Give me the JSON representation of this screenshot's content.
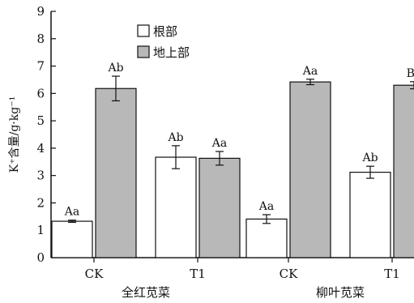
{
  "chart_data": {
    "type": "bar",
    "ylabel": "K⁺含量/g·kg⁻¹",
    "ylim": [
      0,
      9
    ],
    "yticks": [
      "0",
      "1",
      "2",
      "3",
      "4",
      "5",
      "6",
      "7",
      "8",
      "9"
    ],
    "groups": [
      {
        "name": "全红苋菜",
        "categories": [
          "CK",
          "T1"
        ]
      },
      {
        "name": "柳叶苋菜",
        "categories": [
          "CK",
          "T1"
        ]
      }
    ],
    "categories": [
      "CK",
      "T1",
      "CK",
      "T1"
    ],
    "series": [
      {
        "name": "根部",
        "color": "#ffffff",
        "values": [
          1.33,
          3.67,
          1.41,
          3.12
        ],
        "errors": [
          0.04,
          0.42,
          0.16,
          0.22
        ],
        "labels": [
          "Aa",
          "Ab",
          "Aa",
          "Ab"
        ]
      },
      {
        "name": "地上部",
        "color": "#b8b8b8",
        "values": [
          6.18,
          3.63,
          6.42,
          6.3
        ],
        "errors": [
          0.45,
          0.25,
          0.1,
          0.13
        ],
        "labels": [
          "Ab",
          "Aa",
          "Aa",
          "Ba"
        ]
      }
    ],
    "legend": "top-left",
    "grid": false
  }
}
